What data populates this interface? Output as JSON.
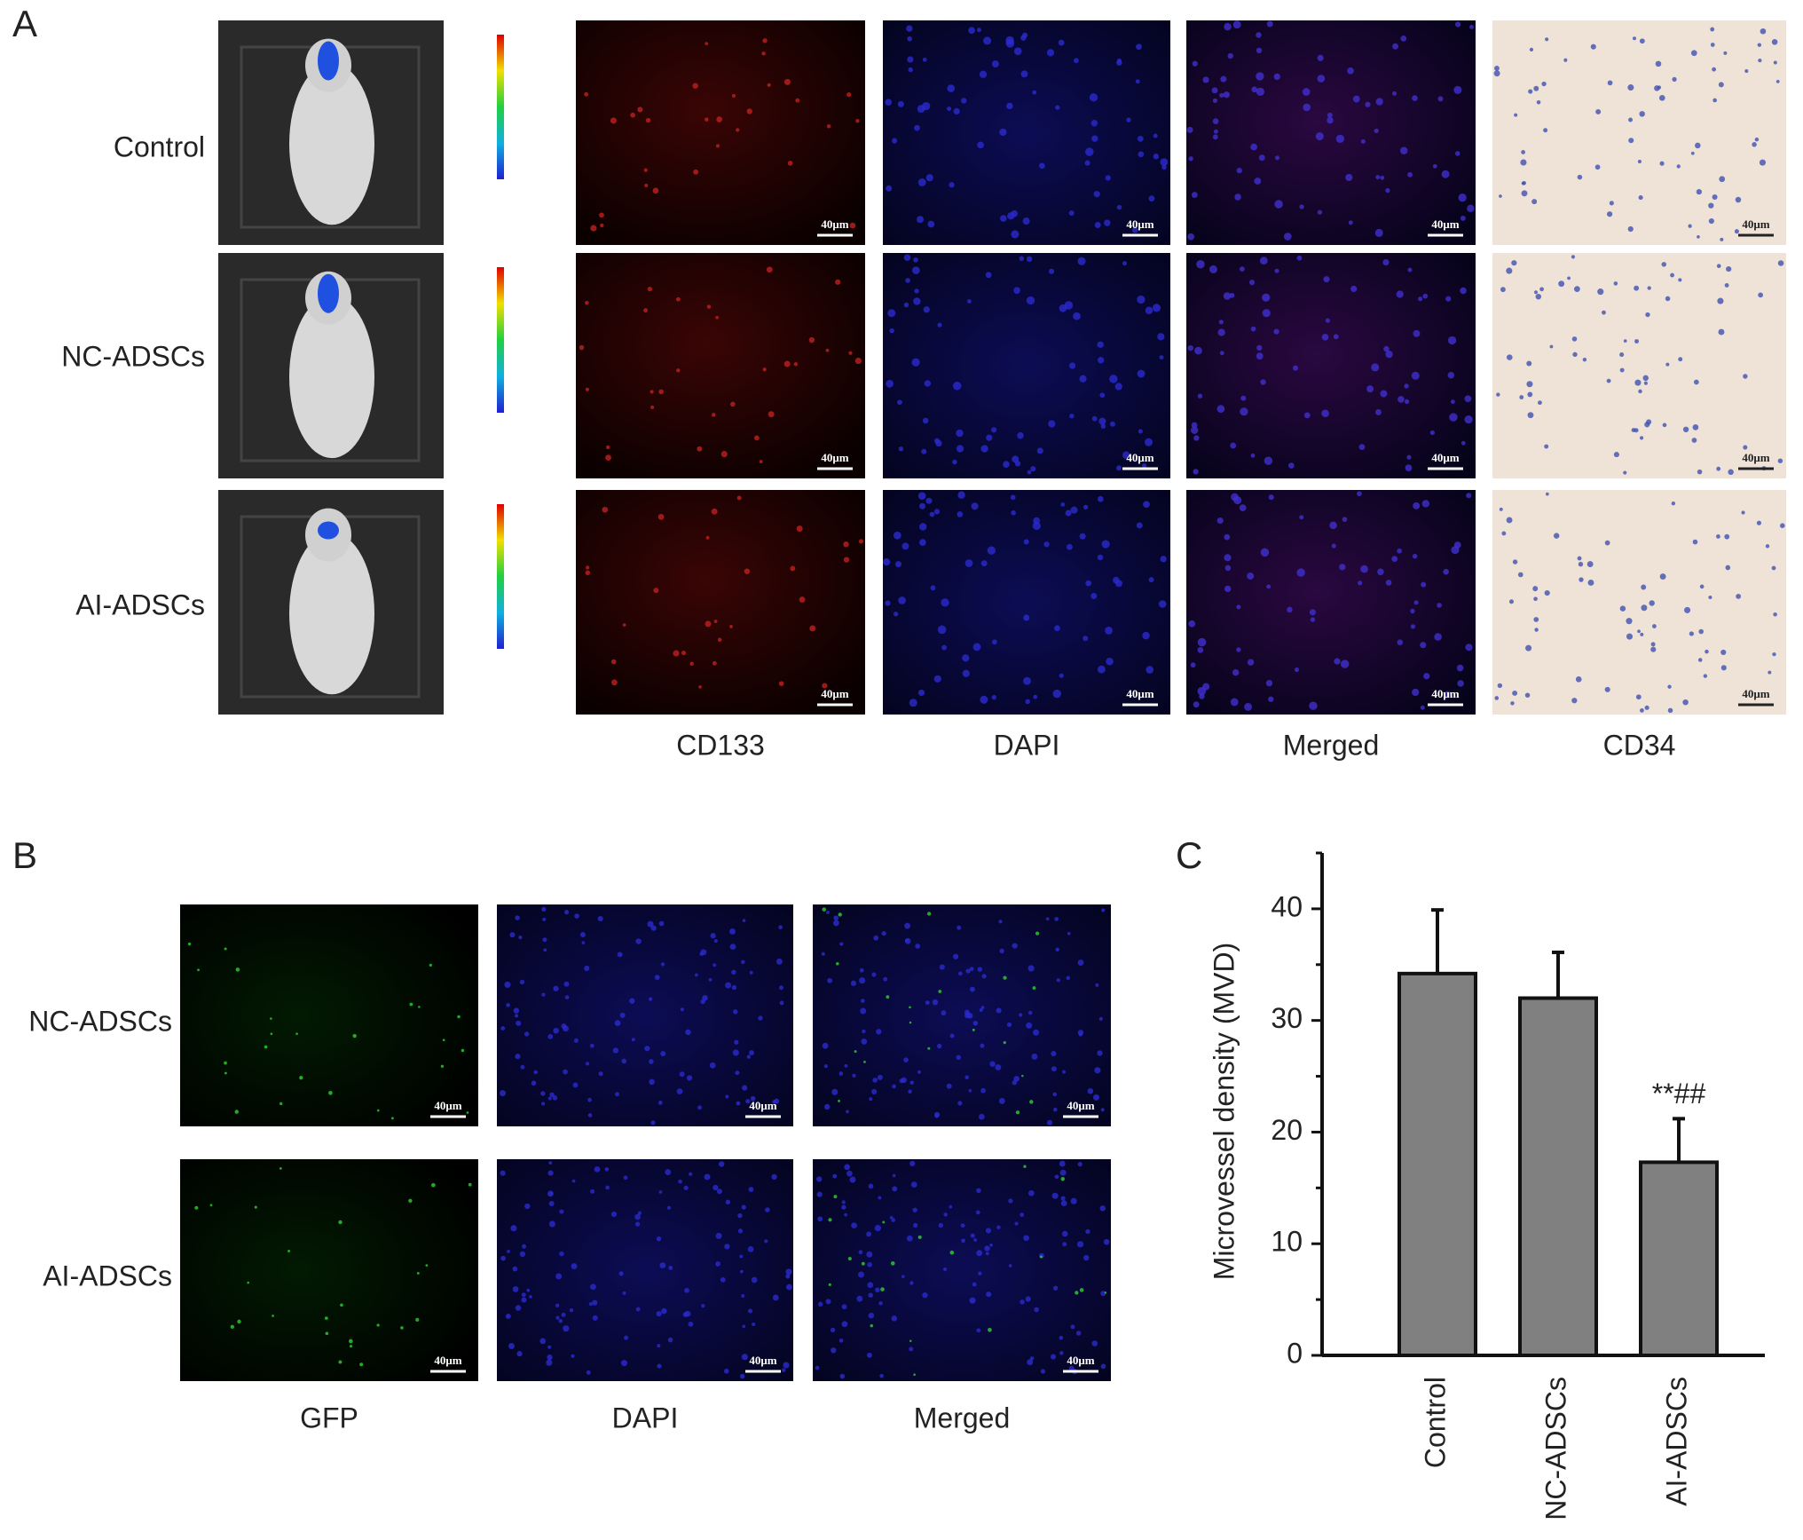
{
  "panel_a": {
    "letter": "A",
    "rows": [
      "Control",
      "NC-ADSCs",
      "AI-ADSCs"
    ],
    "columns": [
      "CD133",
      "DAPI",
      "Merged",
      "CD34"
    ]
  },
  "panel_b": {
    "letter": "B",
    "rows": [
      "NC-ADSCs",
      "AI-ADSCs"
    ],
    "columns": [
      "GFP",
      "DAPI",
      "Merged"
    ]
  },
  "scale_bar": "40μm",
  "chart_data": {
    "type": "bar",
    "panel_letter": "C",
    "y_label": "Microvessel density (MVD)",
    "categories": [
      "Control",
      "NC-ADSCs",
      "AI-ADSCs"
    ],
    "values": [
      34.2,
      32,
      17.3
    ],
    "errors": [
      5.7,
      4.1,
      3.9
    ],
    "annotations": [
      null,
      null,
      "**##"
    ],
    "color": "#808080",
    "ylim": [
      0,
      45
    ],
    "yticks": [
      0,
      10,
      20,
      30,
      40
    ],
    "yminor_ticks": [
      5,
      15,
      25,
      35,
      45
    ]
  }
}
